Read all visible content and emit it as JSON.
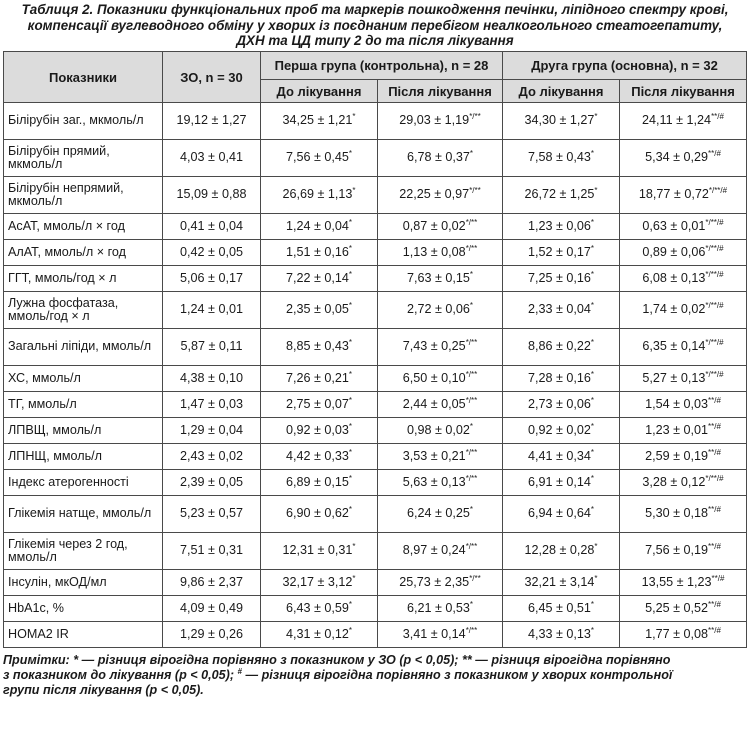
{
  "title": {
    "line1": "Таблиця 2. Показники функціональних проб та маркерів пошкодження печінки, ліпідного спектру крові,",
    "line2": "компенсації вуглеводного обміну у хворих із поєднаним перебігом неалкогольного стеатогепатиту,",
    "line3": "ДХН та ЦД типу 2 до та після лікування"
  },
  "header": {
    "indicators": "Показники",
    "zo": "ЗО, n = 30",
    "group1": "Перша група (контрольна), n = 28",
    "group2": "Друга група (основна), n = 32",
    "before": "До лікування",
    "after": "Після лікування"
  },
  "rows": [
    {
      "name": "Білірубін заг., мкмоль/л",
      "tall": true,
      "zo": "19,12 ± 1,27",
      "g1_before": "34,25 ± 1,21",
      "g1_before_sup": "*",
      "g1_after": "29,03 ± 1,19",
      "g1_after_sup": "*/**",
      "g2_before": "34,30 ± 1,27",
      "g2_before_sup": "*",
      "g2_after": "24,11 ± 1,24",
      "g2_after_sup": "**/#"
    },
    {
      "name": "Білірубін прямий, мкмоль/л",
      "tall": true,
      "zo": "4,03 ± 0,41",
      "g1_before": "7,56 ± 0,45",
      "g1_before_sup": "*",
      "g1_after": "6,78 ± 0,37",
      "g1_after_sup": "*",
      "g2_before": "7,58 ± 0,43",
      "g2_before_sup": "*",
      "g2_after": "5,34 ± 0,29",
      "g2_after_sup": "**/#"
    },
    {
      "name": "Білірубін непрямий, мкмоль/л",
      "tall": true,
      "zo": "15,09 ± 0,88",
      "g1_before": "26,69 ± 1,13",
      "g1_before_sup": "*",
      "g1_after": "22,25 ± 0,97",
      "g1_after_sup": "*/**",
      "g2_before": "26,72 ± 1,25",
      "g2_before_sup": "*",
      "g2_after": "18,77 ± 0,72",
      "g2_after_sup": "*/**/#"
    },
    {
      "name": "АсАТ, ммоль/л × год",
      "tall": false,
      "zo": "0,41 ± 0,04",
      "g1_before": "1,24 ± 0,04",
      "g1_before_sup": "*",
      "g1_after": "0,87 ± 0,02",
      "g1_after_sup": "*/**",
      "g2_before": "1,23 ± 0,06",
      "g2_before_sup": "*",
      "g2_after": "0,63 ± 0,01",
      "g2_after_sup": "*/**/#"
    },
    {
      "name": "АлАТ, ммоль/л × год",
      "tall": false,
      "zo": "0,42 ± 0,05",
      "g1_before": "1,51 ± 0,16",
      "g1_before_sup": "*",
      "g1_after": "1,13 ± 0,08",
      "g1_after_sup": "*/**",
      "g2_before": "1,52 ± 0,17",
      "g2_before_sup": "*",
      "g2_after": "0,89 ± 0,06",
      "g2_after_sup": "*/**/#"
    },
    {
      "name": "ГГТ, ммоль/год × л",
      "tall": false,
      "zo": "5,06 ± 0,17",
      "g1_before": "7,22 ± 0,14",
      "g1_before_sup": "*",
      "g1_after": "7,63 ± 0,15",
      "g1_after_sup": "*",
      "g2_before": "7,25 ± 0,16",
      "g2_before_sup": "*",
      "g2_after": "6,08 ± 0,13",
      "g2_after_sup": "*/**/#"
    },
    {
      "name": "Лужна фосфатаза, ммоль/год × л",
      "tall": true,
      "zo": "1,24 ± 0,01",
      "g1_before": "2,35 ± 0,05",
      "g1_before_sup": "*",
      "g1_after": "2,72 ± 0,06",
      "g1_after_sup": "*",
      "g2_before": "2,33 ± 0,04",
      "g2_before_sup": "*",
      "g2_after": "1,74 ± 0,02",
      "g2_after_sup": "*/**/#"
    },
    {
      "name": "Загальні ліпіди, ммоль/л",
      "tall": true,
      "zo": "5,87 ± 0,11",
      "g1_before": "8,85 ± 0,43",
      "g1_before_sup": "*",
      "g1_after": "7,43 ± 0,25",
      "g1_after_sup": "*/**",
      "g2_before": "8,86 ± 0,22",
      "g2_before_sup": "*",
      "g2_after": "6,35 ± 0,14",
      "g2_after_sup": "*/**/#"
    },
    {
      "name": "ХС, ммоль/л",
      "tall": false,
      "zo": "4,38 ± 0,10",
      "g1_before": "7,26 ± 0,21",
      "g1_before_sup": "*",
      "g1_after": "6,50 ± 0,10",
      "g1_after_sup": "*/**",
      "g2_before": "7,28 ± 0,16",
      "g2_before_sup": "*",
      "g2_after": "5,27 ± 0,13",
      "g2_after_sup": "*/**/#"
    },
    {
      "name": "ТГ, ммоль/л",
      "tall": false,
      "zo": "1,47 ± 0,03",
      "g1_before": "2,75 ± 0,07",
      "g1_before_sup": "*",
      "g1_after": "2,44 ± 0,05",
      "g1_after_sup": "*/**",
      "g2_before": "2,73 ± 0,06",
      "g2_before_sup": "*",
      "g2_after": "1,54 ± 0,03",
      "g2_after_sup": "**/#"
    },
    {
      "name": "ЛПВЩ, ммоль/л",
      "tall": false,
      "zo": "1,29 ± 0,04",
      "g1_before": "0,92 ± 0,03",
      "g1_before_sup": "*",
      "g1_after": "0,98 ± 0,02",
      "g1_after_sup": "*",
      "g2_before": "0,92 ± 0,02",
      "g2_before_sup": "*",
      "g2_after": "1,23 ± 0,01",
      "g2_after_sup": "**/#"
    },
    {
      "name": "ЛПНЩ, ммоль/л",
      "tall": false,
      "zo": "2,43 ± 0,02",
      "g1_before": "4,42 ± 0,33",
      "g1_before_sup": "*",
      "g1_after": "3,53 ± 0,21",
      "g1_after_sup": "*/**",
      "g2_before": "4,41 ± 0,34",
      "g2_before_sup": "*",
      "g2_after": "2,59 ± 0,19",
      "g2_after_sup": "**/#"
    },
    {
      "name": "Індекс атерогенності",
      "tall": false,
      "zo": "2,39 ± 0,05",
      "g1_before": "6,89 ± 0,15",
      "g1_before_sup": "*",
      "g1_after": "5,63 ± 0,13",
      "g1_after_sup": "*/**",
      "g2_before": "6,91 ± 0,14",
      "g2_before_sup": "*",
      "g2_after": "3,28 ± 0,12",
      "g2_after_sup": "*/**/#"
    },
    {
      "name": "Глікемія натще, ммоль/л",
      "tall": true,
      "zo": "5,23 ± 0,57",
      "g1_before": "6,90 ± 0,62",
      "g1_before_sup": "*",
      "g1_after": "6,24 ± 0,25",
      "g1_after_sup": "*",
      "g2_before": "6,94 ± 0,64",
      "g2_before_sup": "*",
      "g2_after": "5,30 ± 0,18",
      "g2_after_sup": "**/#"
    },
    {
      "name": "Глікемія через 2 год, ммоль/л",
      "tall": true,
      "zo": "7,51 ± 0,31",
      "g1_before": "12,31 ± 0,31",
      "g1_before_sup": "*",
      "g1_after": "8,97 ± 0,24",
      "g1_after_sup": "*/**",
      "g2_before": "12,28 ± 0,28",
      "g2_before_sup": "*",
      "g2_after": "7,56 ± 0,19",
      "g2_after_sup": "**/#"
    },
    {
      "name": "Інсулін, мкОД/мл",
      "tall": false,
      "zo": "9,86 ± 2,37",
      "g1_before": "32,17 ± 3,12",
      "g1_before_sup": "*",
      "g1_after": "25,73 ± 2,35",
      "g1_after_sup": "*/**",
      "g2_before": "32,21 ± 3,14",
      "g2_before_sup": "*",
      "g2_after": "13,55 ± 1,23",
      "g2_after_sup": "**/#"
    },
    {
      "name": "HbA1c, %",
      "tall": false,
      "zo": "4,09 ± 0,49",
      "g1_before": "6,43 ± 0,59",
      "g1_before_sup": "*",
      "g1_after": "6,21 ± 0,53",
      "g1_after_sup": "*",
      "g2_before": "6,45 ± 0,51",
      "g2_before_sup": "*",
      "g2_after": "5,25 ± 0,52",
      "g2_after_sup": "**/#"
    },
    {
      "name": "HOMA2 IR",
      "tall": false,
      "zo": "1,29 ± 0,26",
      "g1_before": "4,31 ± 0,12",
      "g1_before_sup": "*",
      "g1_after": "3,41 ± 0,14",
      "g1_after_sup": "*/**",
      "g2_before": "4,33 ± 0,13",
      "g2_before_sup": "*",
      "g2_after": "1,77 ± 0,08",
      "g2_after_sup": "**/#"
    }
  ],
  "notes": {
    "line1": "Примітки: * — різниця вірогідна порівняно з показником у ЗО (р < 0,05); ** — різниця вірогідна порівняно",
    "line2_prefix": "з показником до лікування (р < 0,05); ",
    "line2_sup": "#",
    "line2_suffix": " — різниця вірогідна порівняно з показником у хворих контрольної",
    "line3": "групи після лікування (р < 0,05)."
  }
}
